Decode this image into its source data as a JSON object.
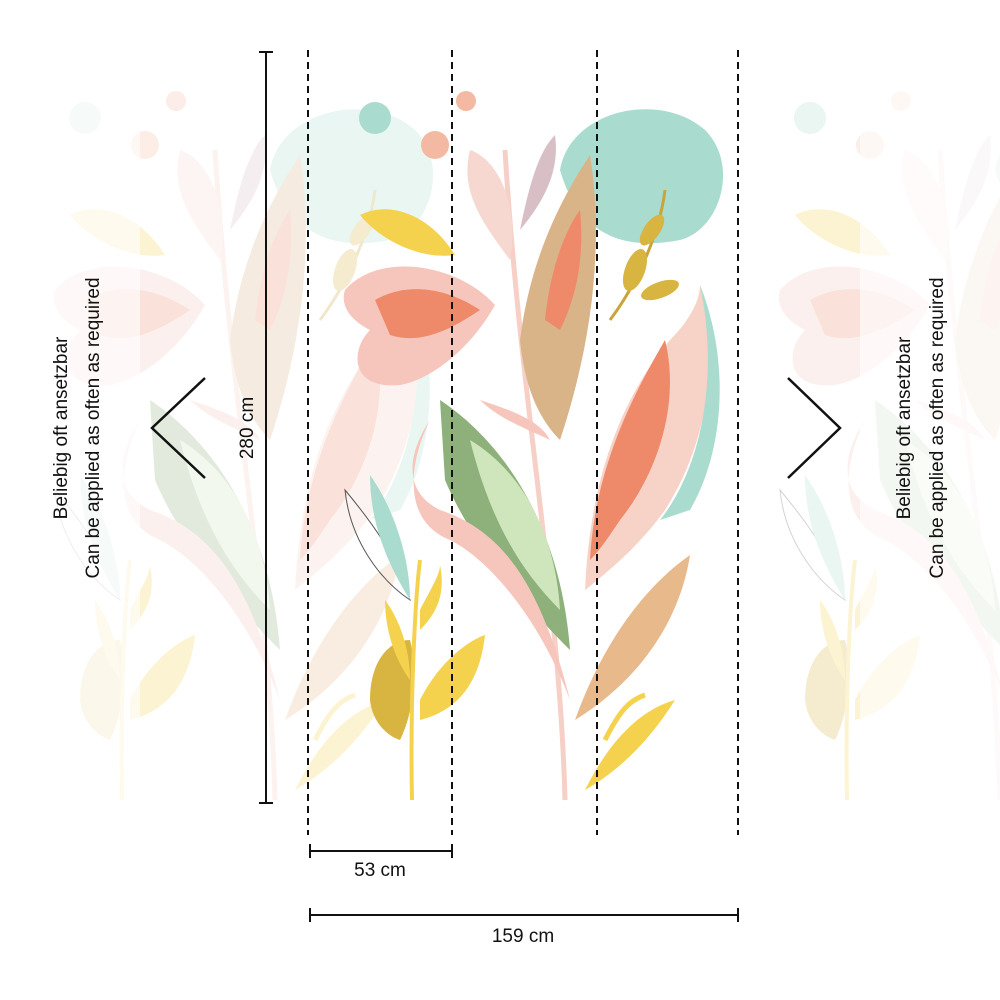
{
  "repeat_note": {
    "line1": "Beliebig oft ansetzbar",
    "line2": "Can be applied as often as required"
  },
  "dimensions": {
    "height": "280 cm",
    "panel_width": "53 cm",
    "total_width": "159 cm"
  }
}
